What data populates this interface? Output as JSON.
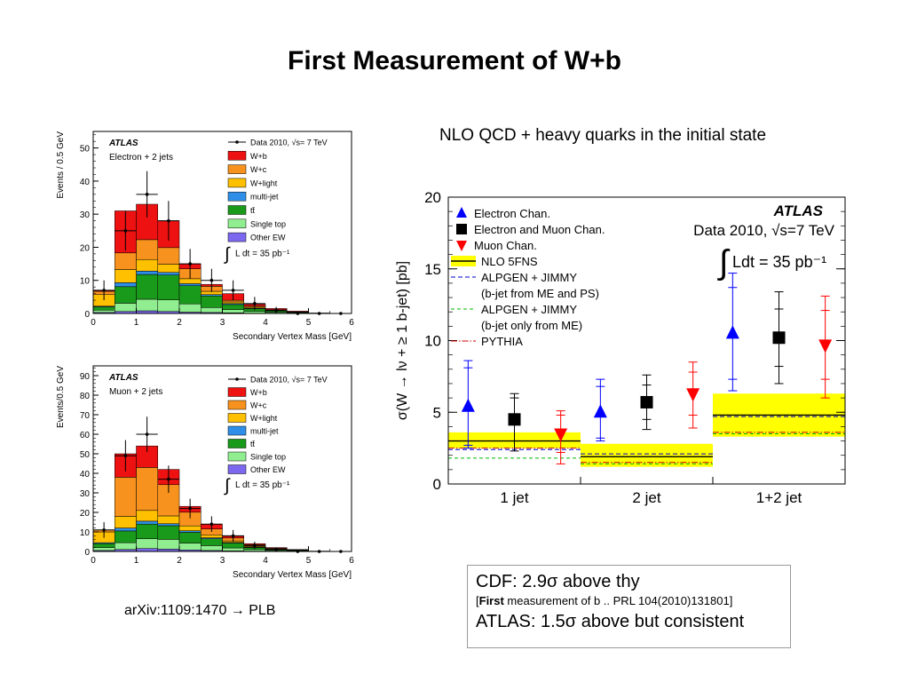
{
  "slide": {
    "title": "First Measurement of W+b",
    "subtitle": "NLO QCD + heavy quarks in the initial state",
    "reference": "arXiv:1109:1470 → PLB",
    "note": {
      "line1": "CDF: 2.9σ above thy",
      "line2_bold": "First",
      "line2_rest": " measurement of b .. PRL 104(2010)131801]",
      "line2_open": "[",
      "line3": "ATLAS: 1.5σ above but consistent"
    }
  },
  "colors": {
    "wb": "#ee1111",
    "wc": "#f7921e",
    "wlight": "#ffc000",
    "multijet": "#2f8fe8",
    "ttbar": "#1a9a1a",
    "singletop": "#90ee90",
    "otherew": "#7b68ee",
    "nlo": "#ffff00",
    "electron": "#0000ff",
    "muon": "#ff0000",
    "combined": "#000000",
    "alpgen_me_ps": "#0000cc",
    "alpgen_me": "#00bb00",
    "pythia": "#cc0000"
  },
  "chart_data": [
    {
      "type": "bar",
      "stacked": true,
      "channel_label": "Electron + 2 jets",
      "experiment_label": "ATLAS",
      "xlabel": "Secondary Vertex Mass [GeV]",
      "ylabel": "Events / 0.5 GeV",
      "xlim": [
        0,
        6
      ],
      "ylim": [
        0,
        55
      ],
      "xticks": [
        "0",
        "1",
        "2",
        "3",
        "4",
        "5",
        "6"
      ],
      "yticks": [
        "0",
        "10",
        "20",
        "30",
        "40",
        "50"
      ],
      "lumi_label": "L dt = 35 pb⁻¹",
      "legend_position": "top-right",
      "bins": [
        0,
        0.5,
        1,
        1.5,
        2,
        2.5,
        3,
        3.5,
        4,
        4.5,
        5,
        5.5,
        6
      ],
      "components": [
        {
          "key": "otherew",
          "name": "Other EW",
          "values": [
            0.3,
            0.6,
            0.8,
            0.6,
            0.4,
            0.3,
            0.2,
            0.1,
            0.1,
            0.05,
            0,
            0
          ]
        },
        {
          "key": "singletop",
          "name": "Single top",
          "values": [
            0.7,
            2.5,
            3.5,
            3.5,
            2.5,
            1.5,
            1.0,
            0.5,
            0.3,
            0.1,
            0.05,
            0
          ]
        },
        {
          "key": "ttbar",
          "name": "tt̄",
          "values": [
            1.0,
            5.0,
            7.5,
            7.5,
            5.5,
            3.5,
            1.5,
            0.8,
            0.4,
            0.2,
            0.1,
            0
          ]
        },
        {
          "key": "multijet",
          "name": "multi-jet",
          "values": [
            0.2,
            1.2,
            1.0,
            0.8,
            0.6,
            0.4,
            0.3,
            0.2,
            0.1,
            0.05,
            0,
            0
          ]
        },
        {
          "key": "wlight",
          "name": "W+light",
          "values": [
            3.5,
            4.0,
            3.5,
            2.5,
            1.5,
            1.0,
            0.5,
            0.3,
            0.1,
            0.05,
            0,
            0
          ]
        },
        {
          "key": "wc",
          "name": "W+c",
          "values": [
            1.0,
            5.0,
            6.0,
            5.0,
            3.0,
            1.5,
            0.5,
            0.3,
            0.1,
            0.05,
            0,
            0
          ]
        },
        {
          "key": "wb",
          "name": "W+b",
          "values": [
            0.3,
            12.7,
            10.7,
            8.1,
            1.5,
            0.6,
            2.0,
            0.6,
            0.4,
            0.2,
            0,
            0
          ]
        }
      ],
      "data_name": "Data 2010, √s= 7 TeV",
      "data": [
        {
          "x": 0.25,
          "y": 7,
          "err": 3
        },
        {
          "x": 0.75,
          "y": 25,
          "err": 6
        },
        {
          "x": 1.25,
          "y": 36,
          "err": 7
        },
        {
          "x": 1.75,
          "y": 28,
          "err": 6
        },
        {
          "x": 2.25,
          "y": 15,
          "err": 4.5
        },
        {
          "x": 2.75,
          "y": 10,
          "err": 3.5
        },
        {
          "x": 3.25,
          "y": 7,
          "err": 3
        },
        {
          "x": 3.75,
          "y": 3,
          "err": 2
        },
        {
          "x": 4.25,
          "y": 1,
          "err": 1
        },
        {
          "x": 4.75,
          "y": 0,
          "err": 0
        },
        {
          "x": 5.25,
          "y": 0,
          "err": 0
        },
        {
          "x": 5.75,
          "y": 0,
          "err": 0
        }
      ]
    },
    {
      "type": "bar",
      "stacked": true,
      "channel_label": "Muon + 2 jets",
      "experiment_label": "ATLAS",
      "xlabel": "Secondary Vertex Mass [GeV]",
      "ylabel": "Events/0.5 GeV",
      "xlim": [
        0,
        6
      ],
      "ylim": [
        0,
        95
      ],
      "xticks": [
        "0",
        "1",
        "2",
        "3",
        "4",
        "5",
        "6"
      ],
      "yticks": [
        "0",
        "10",
        "20",
        "30",
        "40",
        "50",
        "60",
        "70",
        "80",
        "90"
      ],
      "lumi_label": "L dt = 35 pb⁻¹",
      "legend_position": "top-right",
      "bins": [
        0,
        0.5,
        1,
        1.5,
        2,
        2.5,
        3,
        3.5,
        4,
        4.5,
        5,
        5.5,
        6
      ],
      "components": [
        {
          "key": "otherew",
          "name": "Other EW",
          "values": [
            0.5,
            1.0,
            1.5,
            1.2,
            0.8,
            0.5,
            0.3,
            0.2,
            0.1,
            0.05,
            0,
            0
          ]
        },
        {
          "key": "singletop",
          "name": "Single top",
          "values": [
            1.5,
            3.5,
            5.0,
            5.0,
            3.5,
            2.5,
            1.5,
            0.8,
            0.4,
            0.2,
            0.1,
            0
          ]
        },
        {
          "key": "ttbar",
          "name": "tt̄",
          "values": [
            2.0,
            6.0,
            7.5,
            7.0,
            5.5,
            3.5,
            2.5,
            1.0,
            0.5,
            0.3,
            0.1,
            0
          ]
        },
        {
          "key": "multijet",
          "name": "multi-jet",
          "values": [
            0.5,
            1.5,
            1.5,
            1.0,
            0.8,
            0.5,
            0.3,
            0.2,
            0.1,
            0.05,
            0,
            0
          ]
        },
        {
          "key": "wlight",
          "name": "W+light",
          "values": [
            5.5,
            6.0,
            5.5,
            4.0,
            2.5,
            1.5,
            0.8,
            0.4,
            0.2,
            0.1,
            0,
            0
          ]
        },
        {
          "key": "wc",
          "name": "W+c",
          "values": [
            1.0,
            20.0,
            22.0,
            16.0,
            7.0,
            3.0,
            1.5,
            0.8,
            0.3,
            0.1,
            0,
            0
          ]
        },
        {
          "key": "wb",
          "name": "W+b",
          "values": [
            0,
            12,
            11,
            7.8,
            3,
            2.5,
            1.1,
            0.6,
            0.4,
            0.2,
            0,
            0
          ]
        }
      ],
      "data_name": "Data 2010, √s= 7 TeV",
      "data": [
        {
          "x": 0.25,
          "y": 11,
          "err": 4
        },
        {
          "x": 0.75,
          "y": 49,
          "err": 8
        },
        {
          "x": 1.25,
          "y": 60,
          "err": 9
        },
        {
          "x": 1.75,
          "y": 37,
          "err": 7
        },
        {
          "x": 2.25,
          "y": 22,
          "err": 5
        },
        {
          "x": 2.75,
          "y": 14,
          "err": 4
        },
        {
          "x": 3.25,
          "y": 8,
          "err": 3
        },
        {
          "x": 3.75,
          "y": 3,
          "err": 2
        },
        {
          "x": 4.25,
          "y": 1,
          "err": 1
        },
        {
          "x": 4.75,
          "y": 0,
          "err": 0
        },
        {
          "x": 5.25,
          "y": 0,
          "err": 0
        },
        {
          "x": 5.75,
          "y": 0,
          "err": 0
        }
      ]
    },
    {
      "type": "scatter",
      "experiment_label": "ATLAS",
      "data_label": "Data 2010, √s=7 TeV",
      "lumi_label": "Ldt = 35 pb⁻¹",
      "ylabel": "σ(W → lν + ≥ 1 b-jet) [pb]",
      "ylim": [
        0,
        20
      ],
      "yticks": [
        "0",
        "5",
        "10",
        "15",
        "20"
      ],
      "categories": [
        "1 jet",
        "2 jet",
        "1+2 jet"
      ],
      "legend_position": "top-left",
      "series": [
        {
          "key": "electron",
          "name": "Electron Chan.",
          "marker": "triangle-up",
          "x_offset": -0.35,
          "values": [
            5.4,
            5.0,
            10.5
          ],
          "err_low": [
            2.9,
            2.0,
            4.0
          ],
          "err_high": [
            3.2,
            2.3,
            4.2
          ],
          "err_stat": [
            2.7,
            1.8,
            3.2
          ]
        },
        {
          "key": "combined",
          "name": "Electron and Muon Chan.",
          "marker": "square",
          "x_offset": 0,
          "values": [
            4.5,
            5.7,
            10.2
          ],
          "err_low": [
            2.2,
            1.9,
            3.2
          ],
          "err_high": [
            1.8,
            1.9,
            3.2
          ],
          "err_stat": [
            1.5,
            1.2,
            2.0
          ]
        },
        {
          "key": "muon",
          "name": "Muon Chan.",
          "marker": "triangle-down",
          "x_offset": 0.35,
          "values": [
            3.5,
            6.3,
            9.7
          ],
          "err_low": [
            2.1,
            2.4,
            3.7
          ],
          "err_high": [
            1.6,
            2.2,
            3.4
          ],
          "err_stat": [
            1.3,
            1.5,
            2.4
          ]
        }
      ],
      "theory": [
        {
          "key": "nlo",
          "name": "NLO 5FNS",
          "style": "band",
          "values": [
            3.0,
            1.9,
            4.8
          ],
          "band_low": [
            2.5,
            1.2,
            3.3
          ],
          "band_high": [
            3.6,
            2.8,
            6.3
          ]
        },
        {
          "key": "alpgen_me_ps",
          "name": "ALPGEN + JIMMY",
          "name2": "(b-jet from ME and PS)",
          "style": "dashed",
          "values": [
            2.4,
            2.1,
            4.7
          ]
        },
        {
          "key": "alpgen_me",
          "name": "ALPGEN + JIMMY",
          "name2": "(b-jet only from ME)",
          "style": "dashed",
          "values": [
            1.8,
            1.4,
            3.5
          ]
        },
        {
          "key": "pythia",
          "name": "PYTHIA",
          "style": "dashdot",
          "values": [
            2.5,
            1.5,
            3.6
          ]
        }
      ]
    }
  ]
}
